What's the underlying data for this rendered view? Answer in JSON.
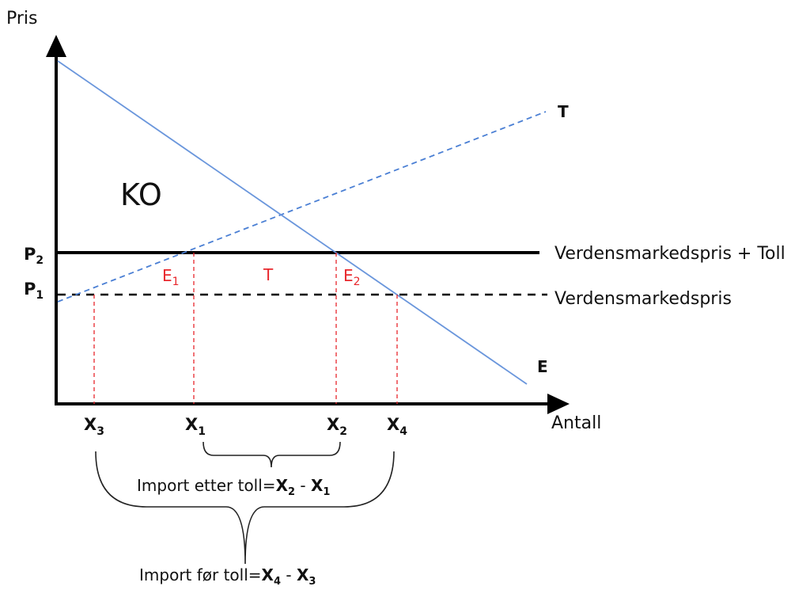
{
  "axes": {
    "y_label": "Pris",
    "x_label": "Antall"
  },
  "curves": {
    "supply": {
      "label": "T",
      "color": "#4a7fd4",
      "style": "dashed"
    },
    "demand": {
      "label": "E",
      "color": "#6a96dc",
      "style": "solid"
    }
  },
  "price_lines": {
    "p2": {
      "label_main": "P",
      "label_sub": "2",
      "desc": "Verdensmarkedspris + Toll"
    },
    "p1": {
      "label_main": "P",
      "label_sub": "1",
      "desc": "Verdensmarkedspris"
    }
  },
  "areas": {
    "consumer_surplus": "KO",
    "e1": {
      "main": "E",
      "sub": "1"
    },
    "toll": "T",
    "e2": {
      "main": "E",
      "sub": "2"
    }
  },
  "quantities": [
    {
      "main": "X",
      "sub": "3"
    },
    {
      "main": "X",
      "sub": "1"
    },
    {
      "main": "X",
      "sub": "2"
    },
    {
      "main": "X",
      "sub": "4"
    }
  ],
  "braces": {
    "import_after": {
      "prefix": "Import etter toll=",
      "a": "X",
      "a_sub": "2",
      "sep": " - ",
      "b": "X",
      "b_sub": "1"
    },
    "import_before": {
      "prefix": "Import før toll=",
      "a": "X",
      "a_sub": "4",
      "sep": " - ",
      "b": "X",
      "b_sub": "3"
    }
  },
  "colors": {
    "axis": "#000000",
    "guide": "#e8272c",
    "area_label": "#e8272c"
  }
}
